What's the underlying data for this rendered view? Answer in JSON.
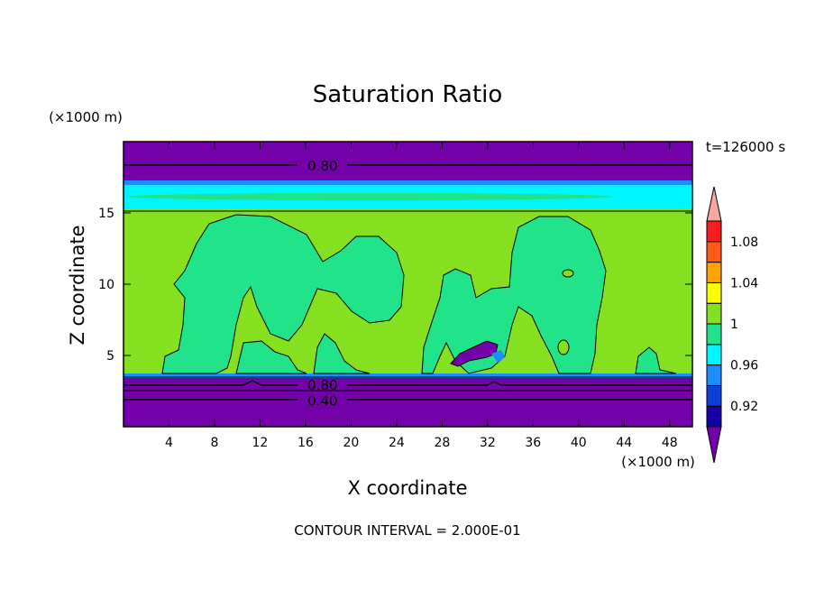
{
  "chart_data": {
    "type": "contour",
    "title": "Saturation Ratio",
    "xlabel": "X coordinate",
    "ylabel": "Z coordinate",
    "x_unit": "(×1000 m)",
    "y_unit": "(×1000 m)",
    "time_label": "t=126000 s",
    "footer": "CONTOUR INTERVAL = 2.000E-01",
    "xlim": [
      0,
      50
    ],
    "ylim": [
      0,
      20
    ],
    "x_ticks": [
      4,
      8,
      12,
      16,
      20,
      24,
      28,
      32,
      36,
      40,
      44,
      48
    ],
    "y_ticks": [
      5,
      10,
      15
    ],
    "contour_labels": [
      {
        "text": "0.80",
        "x": 17.5,
        "z": 18.3
      },
      {
        "text": "0.80",
        "x": 17.5,
        "z": 2.9
      },
      {
        "text": "0.40",
        "x": 17.5,
        "z": 1.8
      }
    ],
    "colorbar": {
      "levels": [
        0.9,
        0.92,
        0.94,
        0.96,
        0.98,
        1.0,
        1.02,
        1.04,
        1.06,
        1.08,
        1.1
      ],
      "colors": [
        "#7300a8",
        "#1400a6",
        "#0a3fd8",
        "#1e8cff",
        "#00f5ff",
        "#21e38a",
        "#85e01f",
        "#fbff00",
        "#ffa400",
        "#ff5a1b",
        "#f41e1e",
        "#f8a7a3"
      ],
      "tick_labels": [
        "0.92",
        "0.96",
        "1",
        "1.04",
        "1.08"
      ]
    }
  }
}
